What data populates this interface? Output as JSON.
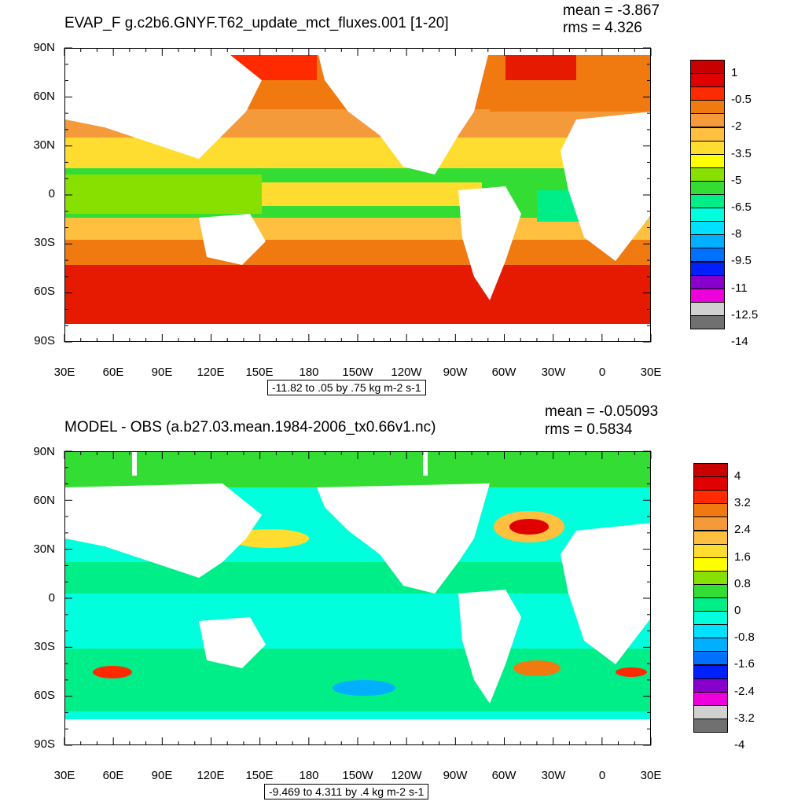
{
  "panels": [
    {
      "title": "EVAP_F g.c2b6.GNYF.T62_update_mct_fluxes.001 [1-20]",
      "mean": "mean = -3.867",
      "rms": "rms = 4.326",
      "info": "-11.82 to .05 by .75 kg m-2 s-1",
      "legend_labels": [
        "1",
        "-0.5",
        "-2",
        "-3.5",
        "-5",
        "-6.5",
        "-8",
        "-9.5",
        "-11",
        "-12.5",
        "-14"
      ],
      "legend_colors": [
        "#c80000",
        "#e00000",
        "#ff2a00",
        "#f07a10",
        "#f59a3a",
        "#ffc040",
        "#ffdd30",
        "#ffff00",
        "#88e000",
        "#33dd33",
        "#00ee88",
        "#00ffdd",
        "#00e0ff",
        "#00b0ff",
        "#0070ff",
        "#0020ff",
        "#8800cc",
        "#ee00dd",
        "#d0d0d0",
        "#707070"
      ]
    },
    {
      "title": "MODEL - OBS (a.b27.03.mean.1984-2006_tx0.66v1.nc)",
      "mean": "mean = -0.05093",
      "rms": "rms = 0.5834",
      "info": "-9.469 to 4.311 by .4 kg m-2 s-1",
      "legend_labels": [
        "4",
        "3.2",
        "2.4",
        "1.6",
        "0.8",
        "0",
        "-0.8",
        "-1.6",
        "-2.4",
        "-3.2",
        "-4"
      ],
      "legend_colors": [
        "#c80000",
        "#e00000",
        "#ff2a00",
        "#f07a10",
        "#f59a3a",
        "#ffc040",
        "#ffdd30",
        "#ffff00",
        "#88e000",
        "#33dd33",
        "#00ee88",
        "#00ffdd",
        "#00e0ff",
        "#00b0ff",
        "#0070ff",
        "#0020ff",
        "#8800cc",
        "#ee00dd",
        "#d0d0d0",
        "#707070"
      ]
    }
  ],
  "lat_labels": [
    "90N",
    "60N",
    "30N",
    "0",
    "30S",
    "60S",
    "90S"
  ],
  "lon_labels": [
    "30E",
    "60E",
    "90E",
    "120E",
    "150E",
    "180",
    "150W",
    "120W",
    "90W",
    "60W",
    "30W",
    "0",
    "30E"
  ]
}
